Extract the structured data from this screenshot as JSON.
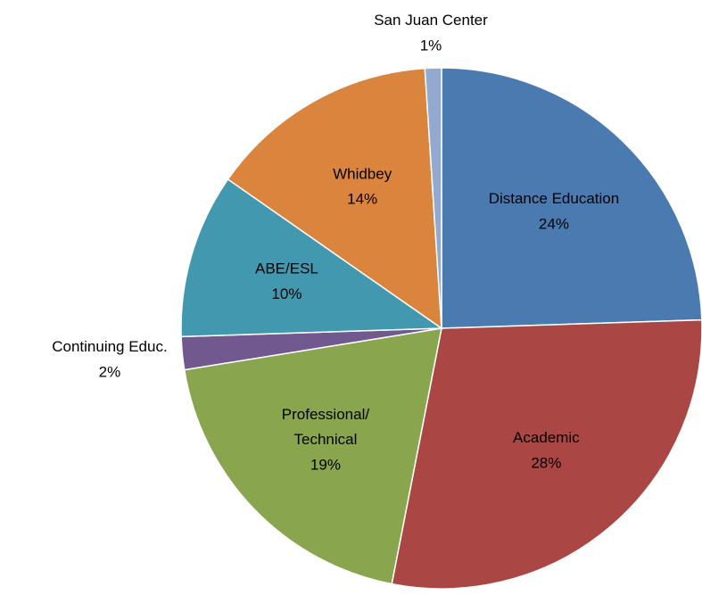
{
  "chart_data": {
    "type": "pie",
    "categories": [
      "Distance Education",
      "Academic",
      "Professional/\nTechnical",
      "Continuing Educ.",
      "ABE/ESL",
      "Whidbey",
      "San Juan Center"
    ],
    "values": [
      24,
      28,
      19,
      2,
      10,
      14,
      1
    ],
    "value_labels": [
      "24%",
      "28%",
      "19%",
      "2%",
      "10%",
      "14%",
      "1%"
    ],
    "colors": [
      "#4a7ab0",
      "#aa4644",
      "#89a54e",
      "#71588f",
      "#4198af",
      "#db843d",
      "#93a9cf"
    ]
  }
}
